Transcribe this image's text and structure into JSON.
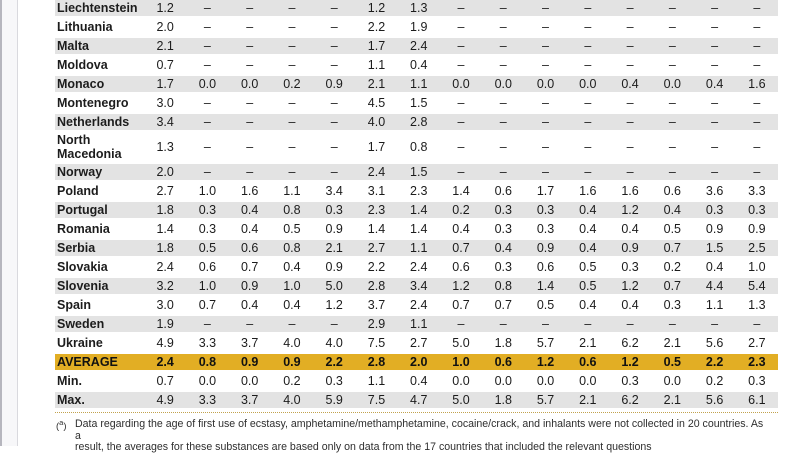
{
  "colors": {
    "row_shade_gray": "#e3e3e3",
    "average_row_gold": "#e2ae24",
    "table_bottom_rule_gold": "#c2a24d",
    "page_edge_outer_line": "#b6b6be",
    "page_edge_inner_line": "#d9d9de",
    "text": "#1c1c1c"
  },
  "table": {
    "numeric_columns": 15,
    "rows": [
      {
        "label": "Liechtenstein",
        "values": [
          "1.2",
          "–",
          "–",
          "–",
          "–",
          "1.2",
          "1.3",
          "–",
          "–",
          "–",
          "–",
          "–",
          "–",
          "–",
          "–"
        ]
      },
      {
        "label": "Lithuania",
        "values": [
          "2.0",
          "–",
          "–",
          "–",
          "–",
          "2.2",
          "1.9",
          "–",
          "–",
          "–",
          "–",
          "–",
          "–",
          "–",
          "–"
        ]
      },
      {
        "label": "Malta",
        "values": [
          "2.1",
          "–",
          "–",
          "–",
          "–",
          "1.7",
          "2.4",
          "–",
          "–",
          "–",
          "–",
          "–",
          "–",
          "–",
          "–"
        ]
      },
      {
        "label": "Moldova",
        "values": [
          "0.7",
          "–",
          "–",
          "–",
          "–",
          "1.1",
          "0.4",
          "–",
          "–",
          "–",
          "–",
          "–",
          "–",
          "–",
          "–"
        ]
      },
      {
        "label": "Monaco",
        "values": [
          "1.7",
          "0.0",
          "0.0",
          "0.2",
          "0.9",
          "2.1",
          "1.1",
          "0.0",
          "0.0",
          "0.0",
          "0.0",
          "0.4",
          "0.0",
          "0.4",
          "1.6"
        ]
      },
      {
        "label": "Montenegro",
        "values": [
          "3.0",
          "–",
          "–",
          "–",
          "–",
          "4.5",
          "1.5",
          "–",
          "–",
          "–",
          "–",
          "–",
          "–",
          "–",
          "–"
        ]
      },
      {
        "label": "Netherlands",
        "values": [
          "3.4",
          "–",
          "–",
          "–",
          "–",
          "4.0",
          "2.8",
          "–",
          "–",
          "–",
          "–",
          "–",
          "–",
          "–",
          "–"
        ]
      },
      {
        "label": "North Macedonia",
        "values": [
          "1.3",
          "–",
          "–",
          "–",
          "–",
          "1.7",
          "0.8",
          "–",
          "–",
          "–",
          "–",
          "–",
          "–",
          "–",
          "–"
        ]
      },
      {
        "label": "Norway",
        "values": [
          "2.0",
          "–",
          "–",
          "–",
          "–",
          "2.4",
          "1.5",
          "–",
          "–",
          "–",
          "–",
          "–",
          "–",
          "–",
          "–"
        ]
      },
      {
        "label": "Poland",
        "values": [
          "2.7",
          "1.0",
          "1.6",
          "1.1",
          "3.4",
          "3.1",
          "2.3",
          "1.4",
          "0.6",
          "1.7",
          "1.6",
          "1.6",
          "0.6",
          "3.6",
          "3.3"
        ]
      },
      {
        "label": "Portugal",
        "values": [
          "1.8",
          "0.3",
          "0.4",
          "0.8",
          "0.3",
          "2.3",
          "1.4",
          "0.2",
          "0.3",
          "0.3",
          "0.4",
          "1.2",
          "0.4",
          "0.3",
          "0.3"
        ]
      },
      {
        "label": "Romania",
        "values": [
          "1.4",
          "0.3",
          "0.4",
          "0.5",
          "0.9",
          "1.4",
          "1.4",
          "0.4",
          "0.3",
          "0.3",
          "0.4",
          "0.4",
          "0.5",
          "0.9",
          "0.9"
        ]
      },
      {
        "label": "Serbia",
        "values": [
          "1.8",
          "0.5",
          "0.6",
          "0.8",
          "2.1",
          "2.7",
          "1.1",
          "0.7",
          "0.4",
          "0.9",
          "0.4",
          "0.9",
          "0.7",
          "1.5",
          "2.5"
        ]
      },
      {
        "label": "Slovakia",
        "values": [
          "2.4",
          "0.6",
          "0.7",
          "0.4",
          "0.9",
          "2.2",
          "2.4",
          "0.6",
          "0.3",
          "0.6",
          "0.5",
          "0.3",
          "0.2",
          "0.4",
          "1.0"
        ]
      },
      {
        "label": "Slovenia",
        "values": [
          "3.2",
          "1.0",
          "0.9",
          "1.0",
          "5.0",
          "2.8",
          "3.4",
          "1.2",
          "0.8",
          "1.4",
          "0.5",
          "1.2",
          "0.7",
          "4.4",
          "5.4"
        ]
      },
      {
        "label": "Spain",
        "values": [
          "3.0",
          "0.7",
          "0.4",
          "0.4",
          "1.2",
          "3.7",
          "2.4",
          "0.7",
          "0.7",
          "0.5",
          "0.4",
          "0.4",
          "0.3",
          "1.1",
          "1.3"
        ]
      },
      {
        "label": "Sweden",
        "values": [
          "1.9",
          "–",
          "–",
          "–",
          "–",
          "2.9",
          "1.1",
          "–",
          "–",
          "–",
          "–",
          "–",
          "–",
          "–",
          "–"
        ]
      },
      {
        "label": "Ukraine",
        "values": [
          "4.9",
          "3.3",
          "3.7",
          "4.0",
          "4.0",
          "7.5",
          "2.7",
          "5.0",
          "1.8",
          "5.7",
          "2.1",
          "6.2",
          "2.1",
          "5.6",
          "2.7"
        ]
      },
      {
        "label": "AVERAGE",
        "highlight": true,
        "values": [
          "2.4",
          "0.8",
          "0.9",
          "0.9",
          "2.2",
          "2.8",
          "2.0",
          "1.0",
          "0.6",
          "1.2",
          "0.6",
          "1.2",
          "0.5",
          "2.2",
          "2.3"
        ]
      },
      {
        "label": "Min.",
        "values": [
          "0.7",
          "0.0",
          "0.0",
          "0.2",
          "0.3",
          "1.1",
          "0.4",
          "0.0",
          "0.0",
          "0.0",
          "0.0",
          "0.3",
          "0.0",
          "0.2",
          "0.3"
        ]
      },
      {
        "label": "Max.",
        "values": [
          "4.9",
          "3.3",
          "3.7",
          "4.0",
          "5.9",
          "7.5",
          "4.7",
          "5.0",
          "1.8",
          "5.7",
          "2.1",
          "6.2",
          "2.1",
          "5.6",
          "6.1"
        ]
      }
    ]
  },
  "footnote": {
    "marker_prefix": "(",
    "marker_letter": "a",
    "marker_suffix": ")",
    "text": "Data regarding the age of first use of ecstasy, amphetamine/methamphetamine, cocaine/crack, and inhalants were not collected in 20 countries. As a\nresult, the averages for these substances are based only on data from the 17 countries that included the relevant questions"
  }
}
